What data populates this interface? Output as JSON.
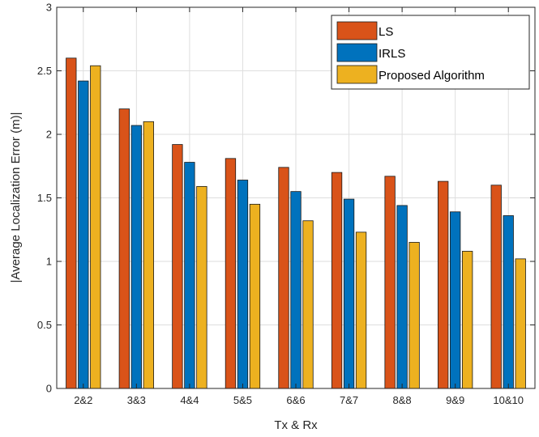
{
  "chart_data": {
    "type": "bar",
    "categories": [
      "2&2",
      "3&3",
      "4&4",
      "5&5",
      "6&6",
      "7&7",
      "8&8",
      "9&9",
      "10&10"
    ],
    "series": [
      {
        "name": "LS",
        "color": "#D95319",
        "values": [
          2.6,
          2.2,
          1.92,
          1.81,
          1.74,
          1.7,
          1.67,
          1.63,
          1.6
        ]
      },
      {
        "name": "IRLS",
        "color": "#0072BD",
        "values": [
          2.42,
          2.07,
          1.78,
          1.64,
          1.55,
          1.49,
          1.44,
          1.39,
          1.36
        ]
      },
      {
        "name": "Proposed Algorithm",
        "color": "#EDB120",
        "values": [
          2.54,
          2.1,
          1.59,
          1.45,
          1.32,
          1.23,
          1.15,
          1.08,
          1.02
        ]
      }
    ],
    "xlabel": "Tx & Rx",
    "ylabel": "|Average Localization Error (m)|",
    "ylim": [
      0,
      3
    ],
    "yticks": [
      0,
      0.5,
      1,
      1.5,
      2,
      2.5,
      3
    ],
    "ytick_labels": [
      "0",
      "0.5",
      "1",
      "1.5",
      "2",
      "2.5",
      "3"
    ],
    "grid": true,
    "legend_position": "top-right"
  }
}
